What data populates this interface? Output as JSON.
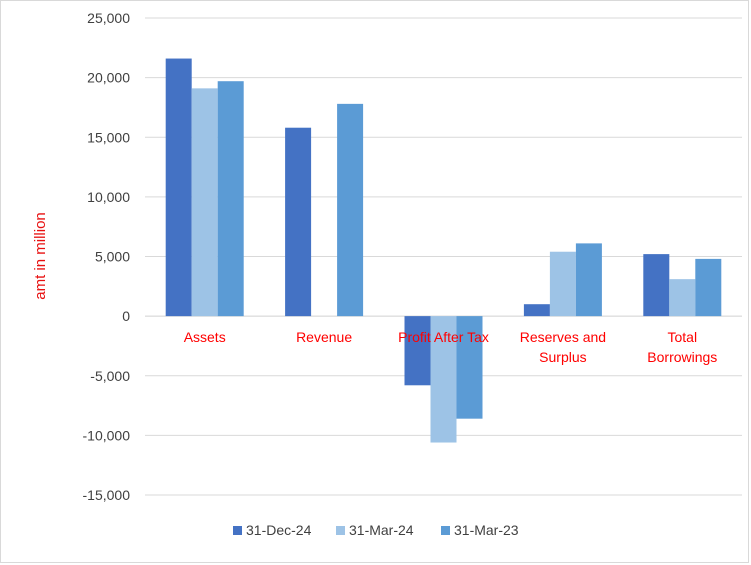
{
  "chart_data": {
    "type": "bar",
    "title": "",
    "xlabel": "",
    "ylabel": "amt in million",
    "ylim": [
      -15000,
      25000
    ],
    "yticks": [
      25000,
      20000,
      15000,
      10000,
      5000,
      0,
      -5000,
      -10000,
      -15000
    ],
    "ytick_labels": [
      "25,000",
      "20,000",
      "15,000",
      "10,000",
      "5,000",
      "0",
      "-5,000",
      "-10,000",
      "-15,000"
    ],
    "grid": true,
    "legend_position": "bottom",
    "categories": [
      [
        "Assets"
      ],
      [
        "Revenue"
      ],
      [
        "Profit After Tax"
      ],
      [
        "Reserves and",
        "Surplus"
      ],
      [
        "Total",
        "Borrowings"
      ]
    ],
    "series": [
      {
        "name": "31-Dec-24",
        "color": "#4472c4",
        "values": [
          21600,
          15800,
          -5800,
          1000,
          5200
        ]
      },
      {
        "name": "31-Mar-24",
        "color": "#9dc3e6",
        "values": [
          19100,
          0,
          -10600,
          5400,
          3100
        ]
      },
      {
        "name": "31-Mar-23",
        "color": "#5b9bd5",
        "values": [
          19700,
          17800,
          -8600,
          6100,
          4800
        ]
      }
    ]
  }
}
